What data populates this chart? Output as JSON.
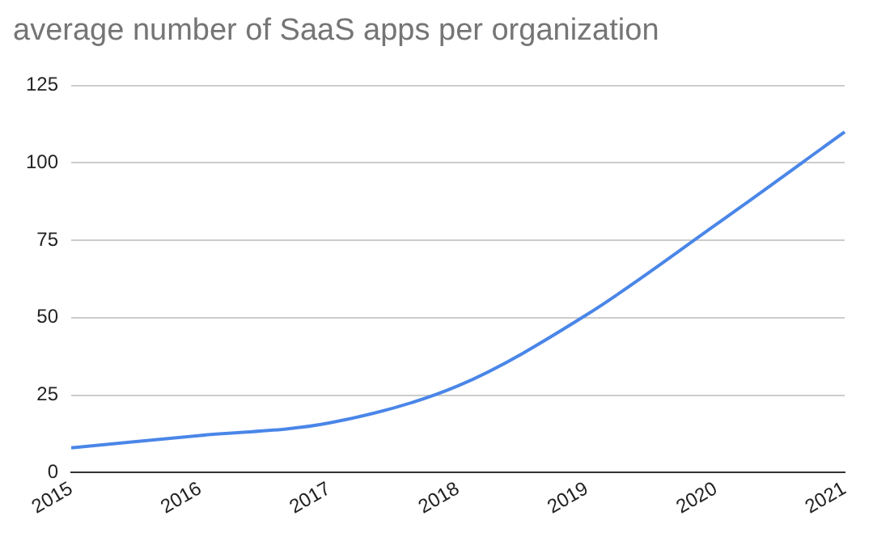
{
  "chart_data": {
    "type": "line",
    "title": "average number of SaaS apps per organization",
    "categories": [
      "2015",
      "2016",
      "2017",
      "2018",
      "2019",
      "2020",
      "2021"
    ],
    "series": [
      {
        "color": "#4a86e8",
        "values": [
          8,
          12,
          16,
          28,
          51,
          80,
          110
        ]
      }
    ],
    "ylim": [
      0,
      125
    ],
    "yticks": [
      0,
      25,
      50,
      75,
      100,
      125
    ],
    "grid": "y",
    "legend": false,
    "marker": "none"
  }
}
